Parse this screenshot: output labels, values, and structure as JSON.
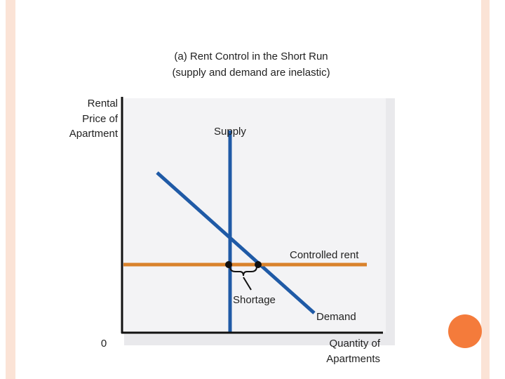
{
  "title": [
    "(a) Rent Control in the Short Run",
    "(supply and demand are inelastic)"
  ],
  "y_axis_label": [
    "Rental",
    "Price of",
    "Apartment"
  ],
  "x_axis_label": [
    "Quantity of",
    "Apartments"
  ],
  "origin_label": "0",
  "curves": {
    "supply": "Supply",
    "demand": "Demand",
    "controlled_rent": "Controlled rent"
  },
  "annotation": "Shortage"
}
